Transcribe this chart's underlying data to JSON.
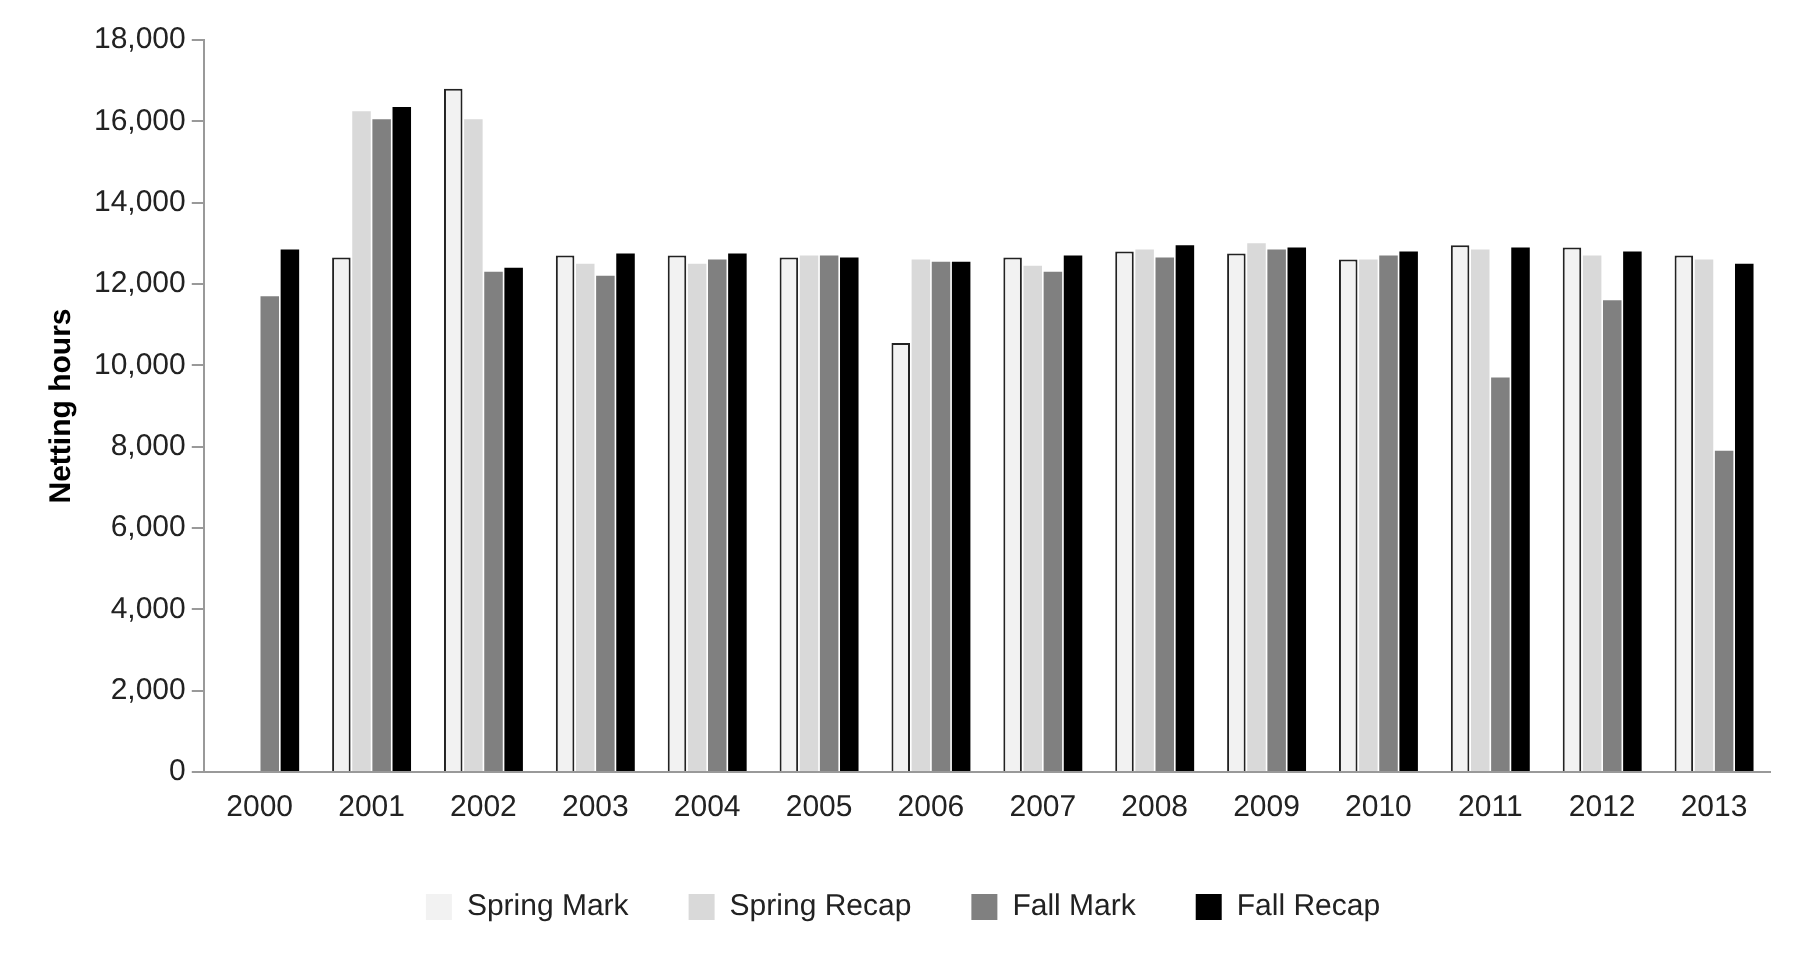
{
  "chart_data": {
    "type": "bar",
    "ylabel": "Netting hours",
    "categories": [
      "2000",
      "2001",
      "2002",
      "2003",
      "2004",
      "2005",
      "2006",
      "2007",
      "2008",
      "2009",
      "2010",
      "2011",
      "2012",
      "2013"
    ],
    "series": [
      {
        "name": "Spring Mark",
        "color": "#f2f2f2",
        "values": [
          null,
          12650,
          16800,
          12700,
          12700,
          12650,
          10550,
          12650,
          12800,
          12750,
          12600,
          12950,
          12900,
          12700
        ]
      },
      {
        "name": "Spring Recap",
        "color": "#d9d9d9",
        "values": [
          null,
          16250,
          16050,
          12500,
          12500,
          12700,
          12600,
          12450,
          12850,
          13000,
          12600,
          12850,
          12700,
          12600
        ]
      },
      {
        "name": "Fall Mark",
        "color": "#808080",
        "values": [
          11700,
          16050,
          12300,
          12200,
          12600,
          12700,
          12550,
          12300,
          12650,
          12850,
          12700,
          9700,
          11600,
          7900
        ]
      },
      {
        "name": "Fall Recap",
        "color": "#000000",
        "values": [
          12850,
          16350,
          12400,
          12750,
          12750,
          12650,
          12550,
          12700,
          12950,
          12900,
          12800,
          12900,
          12800,
          12500
        ]
      }
    ],
    "ylim": [
      0,
      18000
    ],
    "yticks": [
      0,
      {
        "value": 2000,
        "label": "2,000"
      },
      {
        "value": 4000,
        "label": "4,000"
      },
      {
        "value": 6000,
        "label": "6,000"
      },
      {
        "value": 8000,
        "label": "8,000"
      },
      {
        "value": 10000,
        "label": "10,000"
      },
      {
        "value": 12000,
        "label": "12,000"
      },
      {
        "value": 14000,
        "label": "14,000"
      },
      {
        "value": 16000,
        "label": "16,000"
      },
      {
        "value": 18000,
        "label": "18,000"
      }
    ],
    "grid": false,
    "legend": "bottom"
  }
}
